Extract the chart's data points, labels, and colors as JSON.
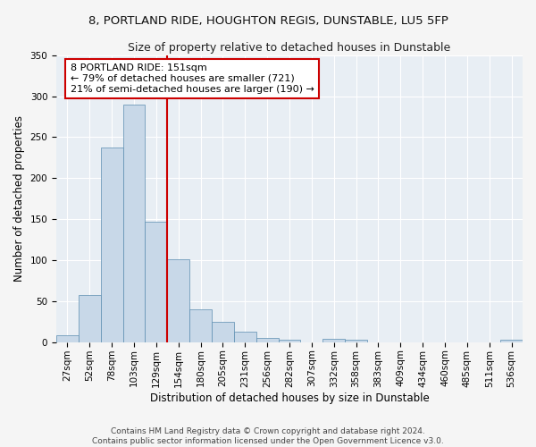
{
  "title": "8, PORTLAND RIDE, HOUGHTON REGIS, DUNSTABLE, LU5 5FP",
  "subtitle": "Size of property relative to detached houses in Dunstable",
  "xlabel": "Distribution of detached houses by size in Dunstable",
  "ylabel": "Number of detached properties",
  "bar_color": "#c8d8e8",
  "bar_edge_color": "#5b8db0",
  "background_color": "#e8eef4",
  "grid_color": "#ffffff",
  "fig_bg_color": "#f5f5f5",
  "annotation_box_color": "#cc0000",
  "vline_color": "#cc0000",
  "vline_x_index": 5,
  "annotation_text": "8 PORTLAND RIDE: 151sqm\n← 79% of detached houses are smaller (721)\n21% of semi-detached houses are larger (190) →",
  "bins": [
    "27sqm",
    "52sqm",
    "78sqm",
    "103sqm",
    "129sqm",
    "154sqm",
    "180sqm",
    "205sqm",
    "231sqm",
    "256sqm",
    "282sqm",
    "307sqm",
    "332sqm",
    "358sqm",
    "383sqm",
    "409sqm",
    "434sqm",
    "460sqm",
    "485sqm",
    "511sqm",
    "536sqm"
  ],
  "values": [
    9,
    57,
    237,
    290,
    147,
    101,
    40,
    25,
    13,
    5,
    3,
    0,
    4,
    3,
    0,
    0,
    0,
    0,
    0,
    0,
    3
  ],
  "ylim": [
    0,
    350
  ],
  "yticks": [
    0,
    50,
    100,
    150,
    200,
    250,
    300,
    350
  ],
  "footer": "Contains HM Land Registry data © Crown copyright and database right 2024.\nContains public sector information licensed under the Open Government Licence v3.0.",
  "title_fontsize": 9.5,
  "subtitle_fontsize": 9,
  "axis_label_fontsize": 8.5,
  "tick_fontsize": 7.5,
  "annotation_fontsize": 8,
  "footer_fontsize": 6.5
}
